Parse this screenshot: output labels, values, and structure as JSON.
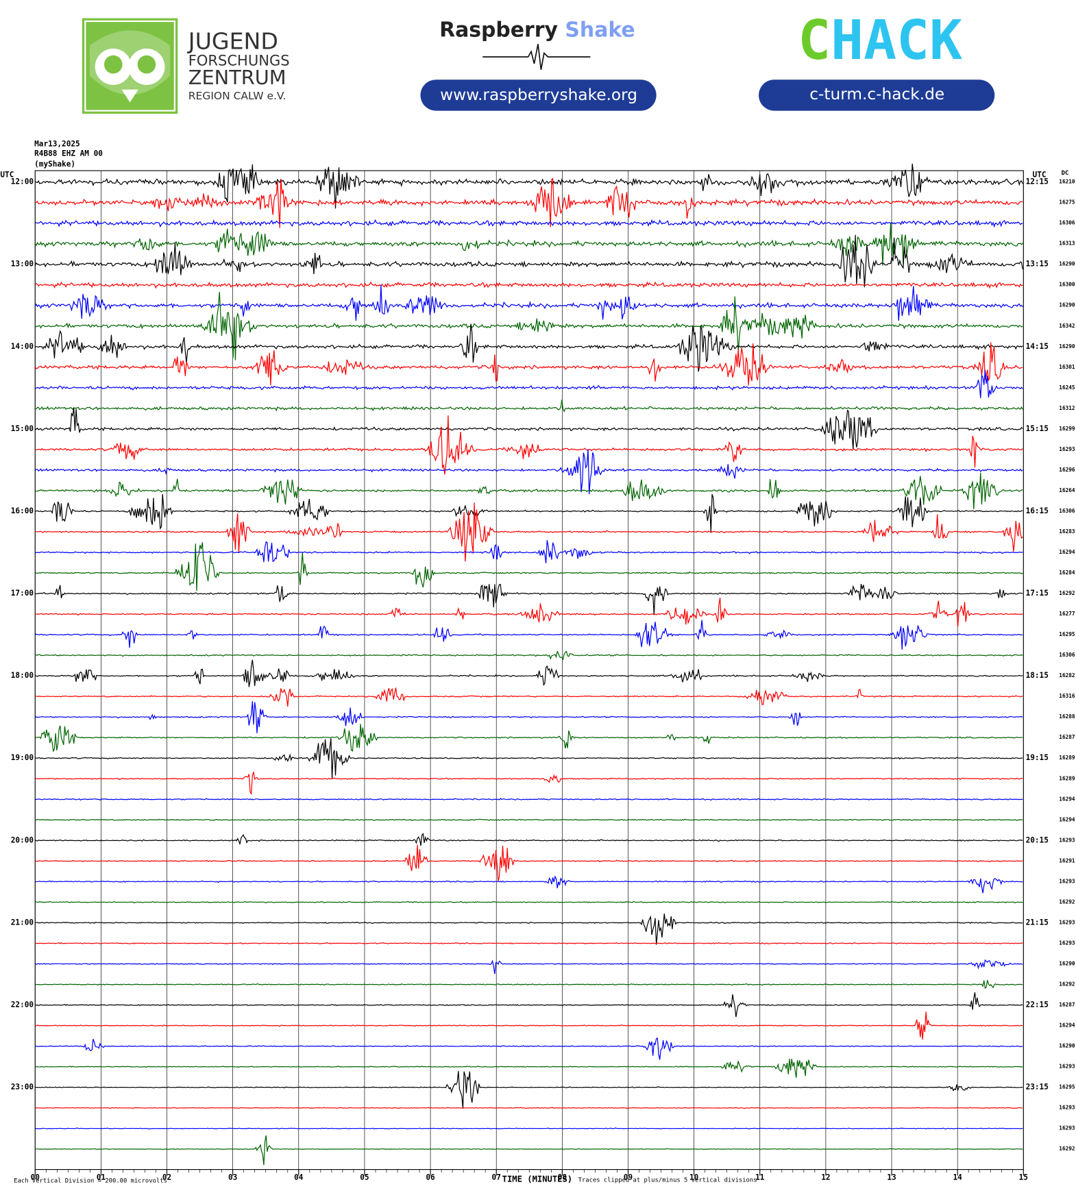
{
  "header": {
    "jfz": {
      "line1": "JUGEND",
      "line2": "FORSCHUNGS",
      "line3": "ZENTRUM",
      "line4": "REGION CALW e.V."
    },
    "rs": {
      "word1": "Raspberry",
      "word2": "Shake",
      "url": "www.raspberryshake.org"
    },
    "chack": {
      "letter_c": "C",
      "letters_hack": "HACK",
      "url": "c-turm.c-hack.de"
    }
  },
  "chart_data": {
    "type": "helicorder",
    "date": "Mar13,2025",
    "station": "R4B88 EHZ AM 00",
    "network": "(myShake)",
    "utc_left": "UTC",
    "utc_right": "UTC",
    "dc_header": "DC",
    "xlabel": "TIME (MINUTES)",
    "scale_note": "Each Vertical Division =  200.00 microvolts",
    "clip_note": "Traces clipped at plus/minus 5 vertical divisions",
    "xlim": [
      0,
      15
    ],
    "xticks": [
      {
        "value": 0,
        "label": "00"
      },
      {
        "value": 1,
        "label": "01"
      },
      {
        "value": 2,
        "label": "02"
      },
      {
        "value": 3,
        "label": "03"
      },
      {
        "value": 4,
        "label": "04"
      },
      {
        "value": 5,
        "label": "05"
      },
      {
        "value": 6,
        "label": "06"
      },
      {
        "value": 7,
        "label": "07"
      },
      {
        "value": 8,
        "label": "08"
      },
      {
        "value": 9,
        "label": "09"
      },
      {
        "value": 10,
        "label": "10"
      },
      {
        "value": 11,
        "label": "11"
      },
      {
        "value": 12,
        "label": "12"
      },
      {
        "value": 13,
        "label": "13"
      },
      {
        "value": 14,
        "label": "14"
      },
      15
    ],
    "left_labels": [
      "12:00",
      "13:00",
      "14:00",
      "15:00",
      "16:00",
      "17:00",
      "18:00",
      "19:00",
      "20:00",
      "21:00",
      "22:00",
      "23:00"
    ],
    "right_labels": [
      "12:15",
      "13:15",
      "14:15",
      "15:15",
      "16:15",
      "17:15",
      "18:15",
      "19:15",
      "20:15",
      "21:15",
      "22:15",
      "23:15"
    ],
    "dc_values": [
      16210,
      16275,
      16306,
      16313,
      16290,
      16300,
      16290,
      16342,
      16290,
      16301,
      16245,
      16312,
      16299,
      16293,
      16296,
      16264,
      16306,
      16283,
      16294,
      16284,
      16292,
      16277,
      16295,
      16306,
      16282,
      16316,
      16288,
      16287,
      16289,
      16289,
      16294,
      16294,
      16293,
      16291,
      16293,
      16292,
      16293,
      16293,
      16290,
      16292,
      16287,
      16294,
      16290,
      16293,
      16295,
      16293,
      16293,
      16292
    ],
    "colors": [
      "#000000",
      "#ff0000",
      "#0000ff",
      "#006400"
    ]
  }
}
